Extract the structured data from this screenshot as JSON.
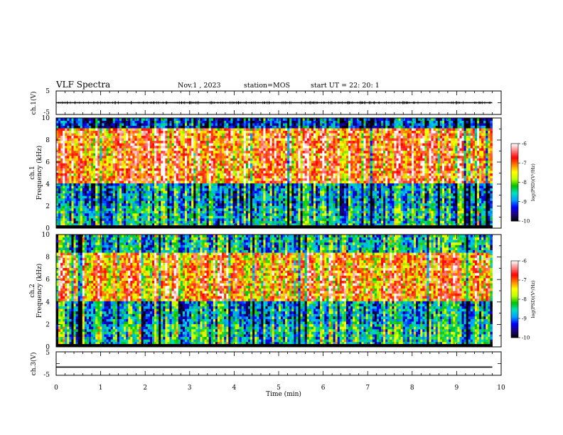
{
  "header": {
    "title": "VLF Spectra",
    "date": "Nov.1 , 2023",
    "station": "station=MOS",
    "start_ut": "start UT = 22: 20: 1"
  },
  "chart_data": [
    {
      "type": "line",
      "panel": "ch1-waveform",
      "ylabel": "ch.1(V)",
      "ylim": [
        -5,
        5
      ],
      "ytick_labels": [
        "5",
        "-5"
      ],
      "xlim": [
        0,
        10
      ],
      "series": [
        {
          "x": [
            0,
            9.8
          ],
          "values": [
            0,
            0
          ]
        }
      ],
      "trace_color": "#000000"
    },
    {
      "type": "heatmap",
      "panel": "ch1-spectrogram",
      "ylabel": "ch.1\nFrequency (kHz)",
      "ylim": [
        0,
        10
      ],
      "ytick_labels": [
        "0",
        "2",
        "4",
        "6",
        "8",
        "10"
      ],
      "xlim": [
        0,
        10
      ],
      "data_end_x": 9.8,
      "colorbar": {
        "label": "log(PSD)(V²/Hz)",
        "range": [
          -10,
          -6
        ],
        "tick_labels": [
          "-10",
          "-9",
          "-8",
          "-7",
          "-6"
        ],
        "colors": [
          "#000000",
          "#1c0080",
          "#0000ff",
          "#00a0ff",
          "#00e0c0",
          "#00c000",
          "#c0ff00",
          "#ffff00",
          "#ff8000",
          "#ff0000",
          "#ff8080",
          "#ffffff"
        ]
      },
      "description_bands": [
        {
          "ymin": 0,
          "ymax": 2,
          "level": -8.5
        },
        {
          "ymin": 2,
          "ymax": 4,
          "level": -8.8
        },
        {
          "ymin": 4,
          "ymax": 9,
          "level": -6.8
        },
        {
          "ymin": 9,
          "ymax": 10,
          "level": -9.2
        }
      ]
    },
    {
      "type": "heatmap",
      "panel": "ch2-spectrogram",
      "ylabel": "ch.2\nFrequency (kHz)",
      "ylim": [
        0,
        10
      ],
      "ytick_labels": [
        "0",
        "2",
        "4",
        "6",
        "8",
        "10"
      ],
      "xlim": [
        0,
        10
      ],
      "data_end_x": 9.8,
      "colorbar": {
        "label": "log(PSD)(V²/Hz)",
        "range": [
          -10,
          -6
        ],
        "tick_labels": [
          "-10",
          "-9",
          "-8",
          "-7",
          "-6"
        ],
        "colors": [
          "#000000",
          "#1c0080",
          "#0000ff",
          "#00a0ff",
          "#00e0c0",
          "#00c000",
          "#c0ff00",
          "#ffff00",
          "#ff8000",
          "#ff0000",
          "#ff8080",
          "#ffffff"
        ]
      },
      "description_bands": [
        {
          "ymin": 0,
          "ymax": 2,
          "level": -8.3
        },
        {
          "ymin": 2,
          "ymax": 4,
          "level": -8.6
        },
        {
          "ymin": 4,
          "ymax": 8.5,
          "level": -6.9
        },
        {
          "ymin": 8.5,
          "ymax": 10,
          "level": -8.4
        }
      ]
    },
    {
      "type": "line",
      "panel": "ch3-waveform",
      "ylabel": "ch.3(V)",
      "ylim": [
        -5,
        5
      ],
      "ytick_labels": [
        "5",
        "-5"
      ],
      "xlim": [
        0,
        10
      ],
      "series": [
        {
          "x": [
            0,
            9.8
          ],
          "values": [
            -1.5,
            -1.5
          ]
        }
      ],
      "trace_color": "#000000"
    }
  ],
  "x_axis": {
    "label": "Time (min)",
    "range": [
      0,
      10
    ],
    "tick_labels": [
      "0",
      "1",
      "2",
      "3",
      "4",
      "5",
      "6",
      "7",
      "8",
      "9",
      "10"
    ]
  }
}
